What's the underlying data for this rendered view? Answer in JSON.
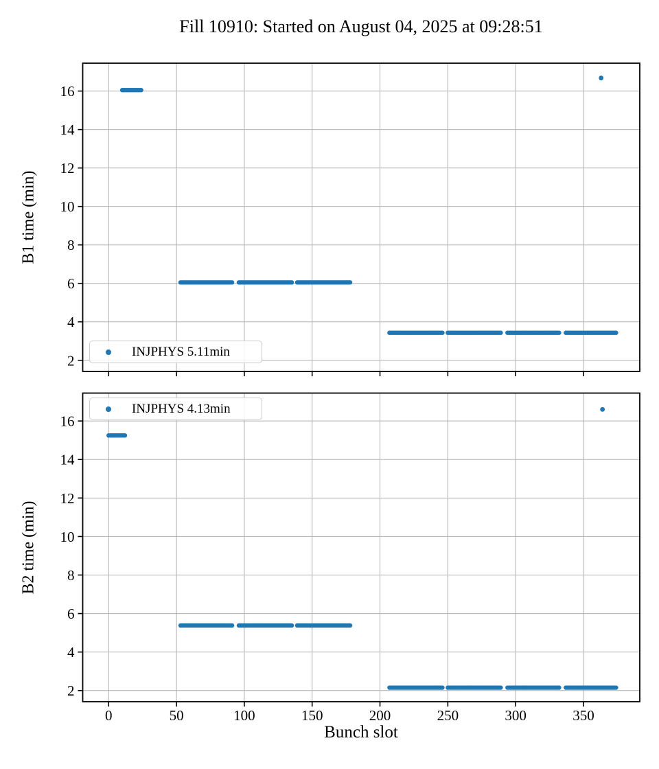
{
  "title": "Fill 10910: Started on August 04, 2025 at 09:28:51",
  "colors": {
    "marker": "#1f77b4",
    "grid": "#b0b0b0",
    "spine": "#000000",
    "legend_border": "#cccccc",
    "background": "#ffffff"
  },
  "xlabel": "Bunch slot",
  "chart_data": [
    {
      "type": "scatter",
      "name": "B1",
      "ylabel": "B1 time (min)",
      "xlabel": "",
      "series_label": "INJPHYS",
      "mean_minutes": 5.11,
      "legend": {
        "label": "INJPHYS 5.11min",
        "position": "lower left"
      },
      "xlim": [
        -19.1,
        391.5
      ],
      "ylim": [
        1.42,
        17.45
      ],
      "xticks": [
        0,
        50,
        100,
        150,
        200,
        250,
        300,
        350
      ],
      "yticks": [
        2,
        4,
        6,
        8,
        10,
        12,
        14,
        16
      ],
      "show_x_tick_labels": false,
      "grid": true,
      "clusters": [
        {
          "x_start": 10,
          "x_end": 24,
          "y": 16.05
        },
        {
          "x_start": 53,
          "x_end": 91,
          "y": 6.05
        },
        {
          "x_start": 96,
          "x_end": 135,
          "y": 6.05
        },
        {
          "x_start": 139,
          "x_end": 178,
          "y": 6.05
        },
        {
          "x_start": 207,
          "x_end": 246,
          "y": 3.43
        },
        {
          "x_start": 250,
          "x_end": 289,
          "y": 3.43
        },
        {
          "x_start": 294,
          "x_end": 332,
          "y": 3.43
        },
        {
          "x_start": 337,
          "x_end": 374,
          "y": 3.43
        }
      ],
      "outliers": [
        {
          "x": 363,
          "y": 16.68
        }
      ]
    },
    {
      "type": "scatter",
      "name": "B2",
      "ylabel": "B2 time (min)",
      "xlabel": "Bunch slot",
      "series_label": "INJPHYS",
      "mean_minutes": 4.13,
      "legend": {
        "label": "INJPHYS 4.13min",
        "position": "upper left"
      },
      "xlim": [
        -19.1,
        391.5
      ],
      "ylim": [
        1.42,
        17.45
      ],
      "xticks": [
        0,
        50,
        100,
        150,
        200,
        250,
        300,
        350
      ],
      "yticks": [
        2,
        4,
        6,
        8,
        10,
        12,
        14,
        16
      ],
      "show_x_tick_labels": true,
      "grid": true,
      "clusters": [
        {
          "x_start": 0,
          "x_end": 12,
          "y": 15.25
        },
        {
          "x_start": 53,
          "x_end": 91,
          "y": 5.38
        },
        {
          "x_start": 96,
          "x_end": 135,
          "y": 5.38
        },
        {
          "x_start": 139,
          "x_end": 178,
          "y": 5.38
        },
        {
          "x_start": 207,
          "x_end": 246,
          "y": 2.15
        },
        {
          "x_start": 250,
          "x_end": 289,
          "y": 2.15
        },
        {
          "x_start": 294,
          "x_end": 332,
          "y": 2.15
        },
        {
          "x_start": 337,
          "x_end": 374,
          "y": 2.15
        }
      ],
      "outliers": [
        {
          "x": 364,
          "y": 16.6
        }
      ]
    }
  ]
}
